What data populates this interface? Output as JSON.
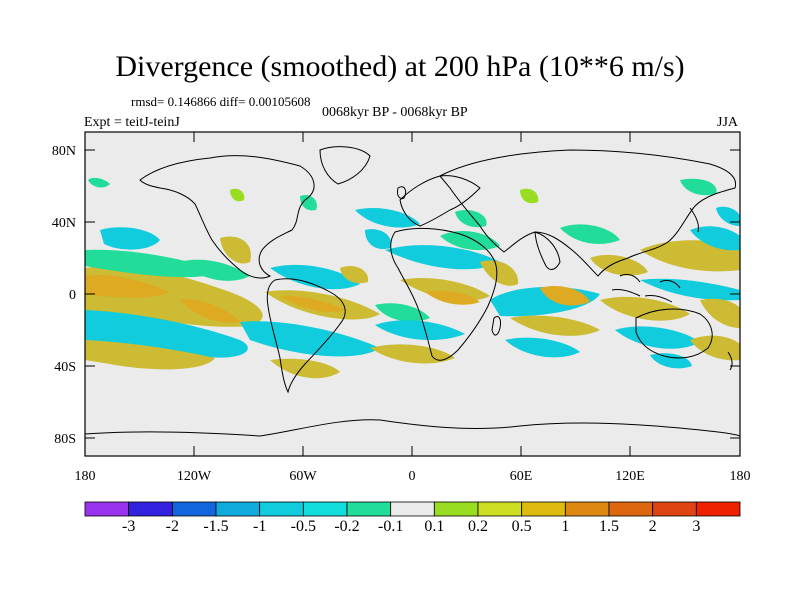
{
  "title": "Divergence (smoothed) at 200 hPa (10**6 m/s)",
  "stats": "rmsd= 0.146866 diff= 0.00105608",
  "period": "0068kyr BP - 0068kyr BP",
  "experiment": "Expt = teitJ-teinJ",
  "season": "JJA",
  "lat_labels": [
    "80N",
    "40N",
    "0",
    "40S",
    "80S"
  ],
  "lon_labels": [
    "180",
    "120W",
    "60W",
    "0",
    "60E",
    "120E",
    "180"
  ],
  "colorbar": {
    "labels": [
      "-3",
      "-2",
      "-1.5",
      "-1",
      "-0.5",
      "-0.2",
      "-0.1",
      "0.1",
      "0.2",
      "0.5",
      "1",
      "1.5",
      "2",
      "3"
    ],
    "colors": [
      "#9933ee",
      "#3322dd",
      "#1166dd",
      "#11aadd",
      "#11ccdd",
      "#11dddd",
      "#22dd99",
      "#ebebeb",
      "#99dd22",
      "#ccdd22",
      "#ddbb11",
      "#dd8811",
      "#dd6611",
      "#dd4411",
      "#ee2200"
    ]
  },
  "field_colors": {
    "neg_weak": "#22dd99",
    "neg_mid": "#11ccdd",
    "pos_weak": "#99dd22",
    "pos_mid": "#ccbb33",
    "pos_strong": "#ddaa22",
    "background": "#ebebeb"
  }
}
